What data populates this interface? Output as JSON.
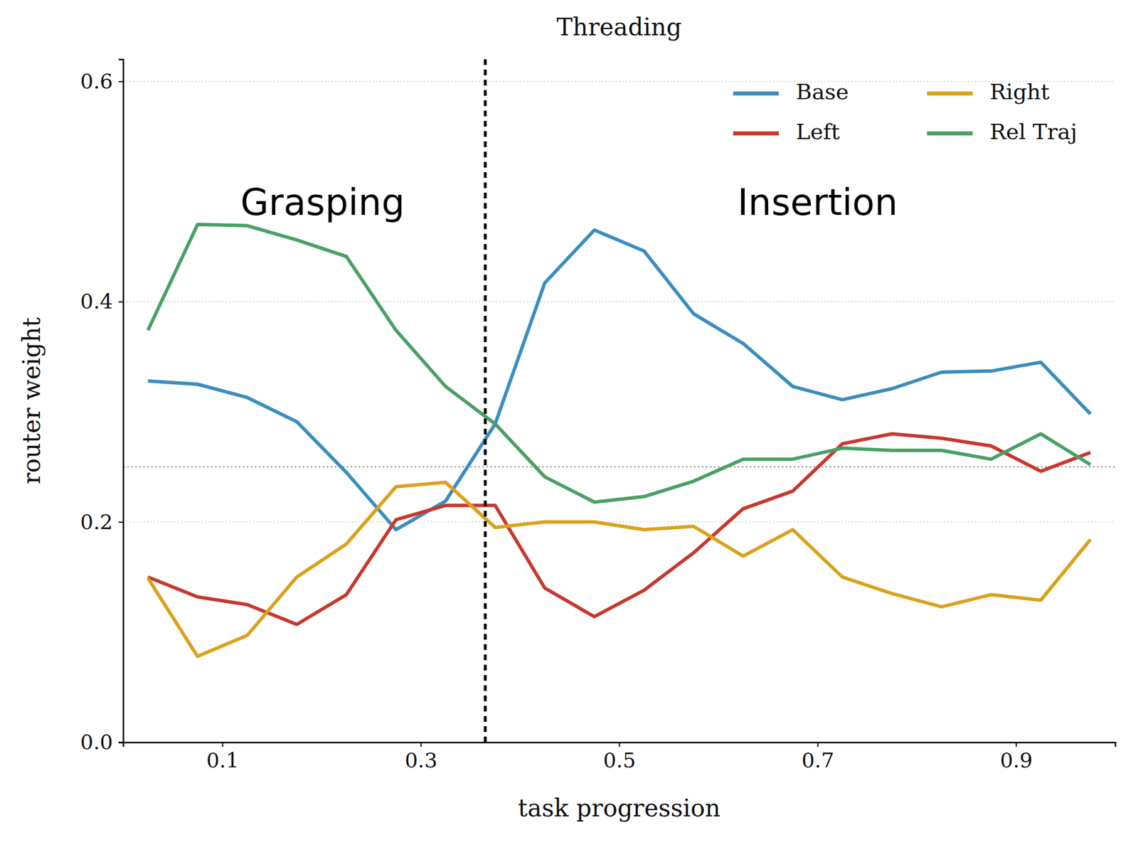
{
  "chart_data": {
    "type": "line",
    "title": "Threading",
    "x_label": "task progression",
    "y_label": "router weight",
    "x": [
      0.025,
      0.075,
      0.125,
      0.175,
      0.225,
      0.275,
      0.325,
      0.375,
      0.425,
      0.475,
      0.525,
      0.575,
      0.625,
      0.675,
      0.725,
      0.775,
      0.825,
      0.875,
      0.925,
      0.975
    ],
    "series": [
      {
        "name": "Base",
        "color": "#3b8dbf",
        "values": [
          0.328,
          0.325,
          0.313,
          0.291,
          0.245,
          0.193,
          0.219,
          0.289,
          0.417,
          0.465,
          0.446,
          0.389,
          0.362,
          0.323,
          0.311,
          0.321,
          0.336,
          0.337,
          0.345,
          0.298
        ]
      },
      {
        "name": "Left",
        "color": "#c8372d",
        "values": [
          0.15,
          0.132,
          0.125,
          0.107,
          0.134,
          0.202,
          0.215,
          0.215,
          0.14,
          0.114,
          0.138,
          0.172,
          0.212,
          0.228,
          0.271,
          0.28,
          0.276,
          0.269,
          0.246,
          0.263
        ]
      },
      {
        "name": "Right",
        "color": "#d9a21b",
        "values": [
          0.149,
          0.078,
          0.097,
          0.15,
          0.18,
          0.232,
          0.236,
          0.195,
          0.2,
          0.2,
          0.193,
          0.196,
          0.169,
          0.193,
          0.15,
          0.135,
          0.123,
          0.134,
          0.129,
          0.184
        ]
      },
      {
        "name": "Rel Traj",
        "color": "#4a9f66",
        "values": [
          0.374,
          0.47,
          0.469,
          0.456,
          0.441,
          0.374,
          0.323,
          0.289,
          0.241,
          0.218,
          0.223,
          0.237,
          0.257,
          0.257,
          0.267,
          0.265,
          0.265,
          0.257,
          0.28,
          0.252
        ]
      }
    ],
    "xlim": [
      0,
      1
    ],
    "ylim": [
      0,
      0.62
    ],
    "xticks": [
      0.1,
      0.3,
      0.5,
      0.7,
      0.9
    ],
    "yticks": [
      {
        "value": 0,
        "label": "0.0"
      },
      0.2,
      0.4,
      0.6
    ],
    "grid": true,
    "legend": "upper right",
    "hline": 0.25,
    "vline": 0.365,
    "annotations": [
      {
        "text": "Grasping",
        "x": 0.201,
        "y": 0.488
      },
      {
        "text": "Insertion",
        "x": 0.7,
        "y": 0.488
      }
    ]
  }
}
